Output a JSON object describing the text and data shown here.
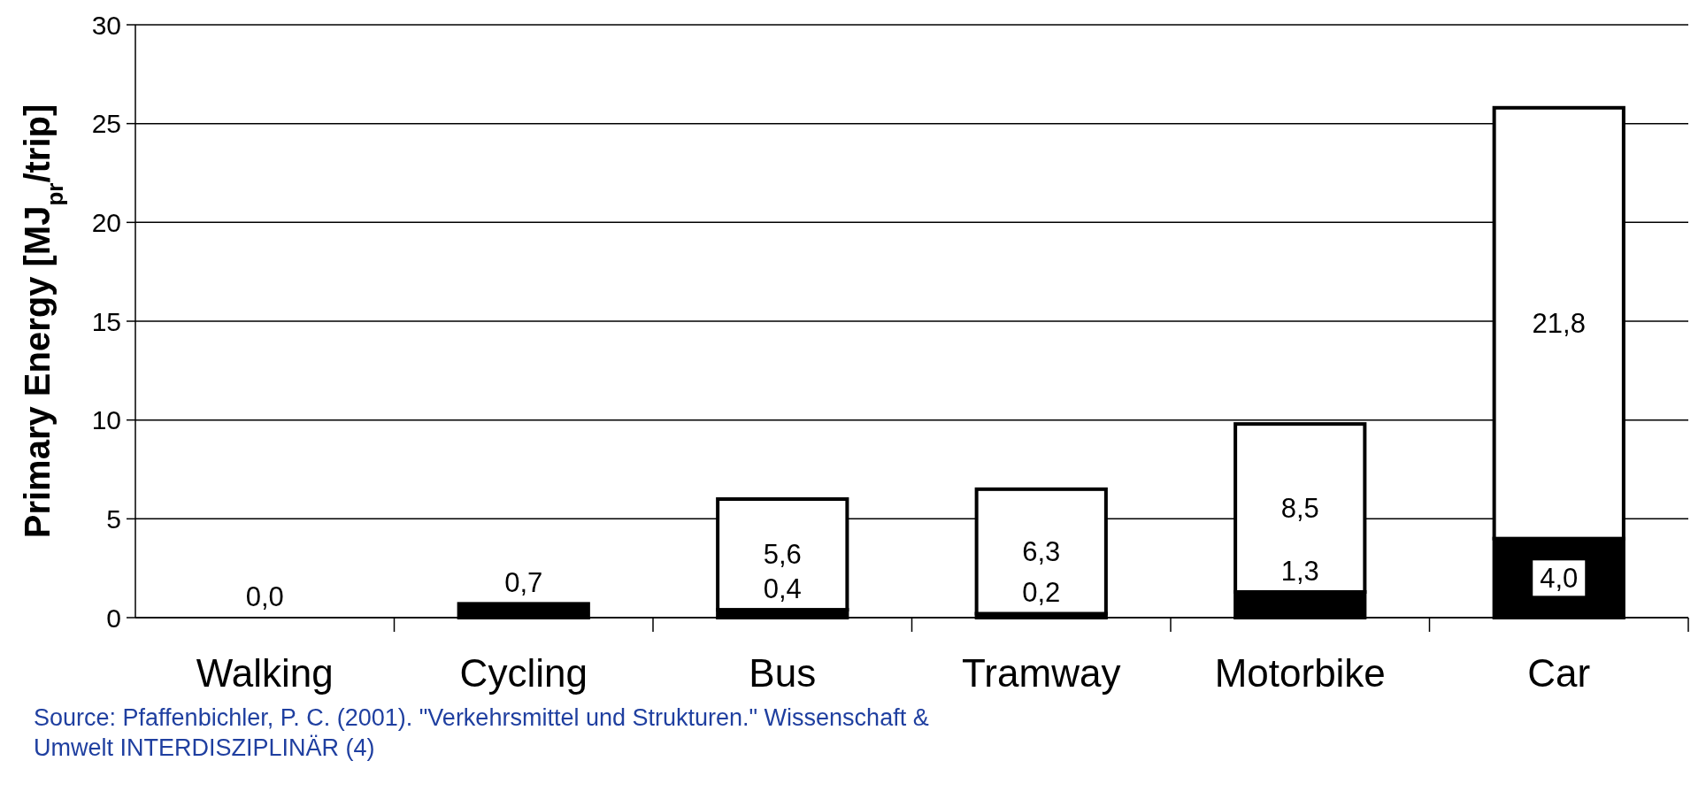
{
  "chart_data": {
    "type": "bar",
    "stacked": true,
    "ylabel": "Primary Energy [MJ$_{pr}$/trip]",
    "categories": [
      "Walking",
      "Cycling",
      "Bus",
      "Tramway",
      "Motorbike",
      "Car"
    ],
    "series": [
      {
        "color": "#000000",
        "values": [
          0,
          0.7,
          0.4,
          0.2,
          1.3,
          4.0
        ],
        "value_labels": [
          "0,0",
          "0,7",
          "0,4",
          "0,2",
          "1,3",
          "4,0"
        ]
      },
      {
        "color": "#ffffff",
        "values": [
          0,
          0,
          5.6,
          6.3,
          8.5,
          21.8
        ],
        "value_labels": [
          null,
          null,
          "5,6",
          "6,3",
          "8,5",
          "21,8"
        ]
      }
    ],
    "ylim": [
      0,
      30
    ],
    "yticks": [
      0,
      5,
      10,
      15,
      20,
      25,
      30
    ],
    "grid": "y",
    "annotations": [
      "Source: Pfaffenbichler, P. C. (2001). \"Verkehrsmittel und Strukturen.\" Wissenschaft & Umwelt INTERDISZIPLINÄR (4)"
    ]
  }
}
